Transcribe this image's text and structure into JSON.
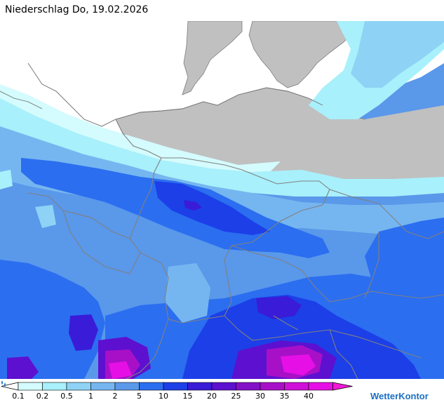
{
  "title": "Niederschlag Do, 19.02.2026",
  "legend": {
    "colors": [
      "#d4fbfd",
      "#a8f0fb",
      "#8ed3f5",
      "#76b6f0",
      "#5a98ea",
      "#2b6ef0",
      "#1c3fe8",
      "#3a1bd8",
      "#5d10d0",
      "#8410c8",
      "#a810c8",
      "#d010d8",
      "#e610e6",
      "#f218d8"
    ],
    "labels": [
      "0.1",
      "0.2",
      "0.5",
      "1",
      "2",
      "5",
      "10",
      "15",
      "20",
      "25",
      "30",
      "35",
      "40"
    ]
  },
  "brand": {
    "name": "WetterKontor",
    "logo_icon": "wetterkontor-drops-icon"
  }
}
